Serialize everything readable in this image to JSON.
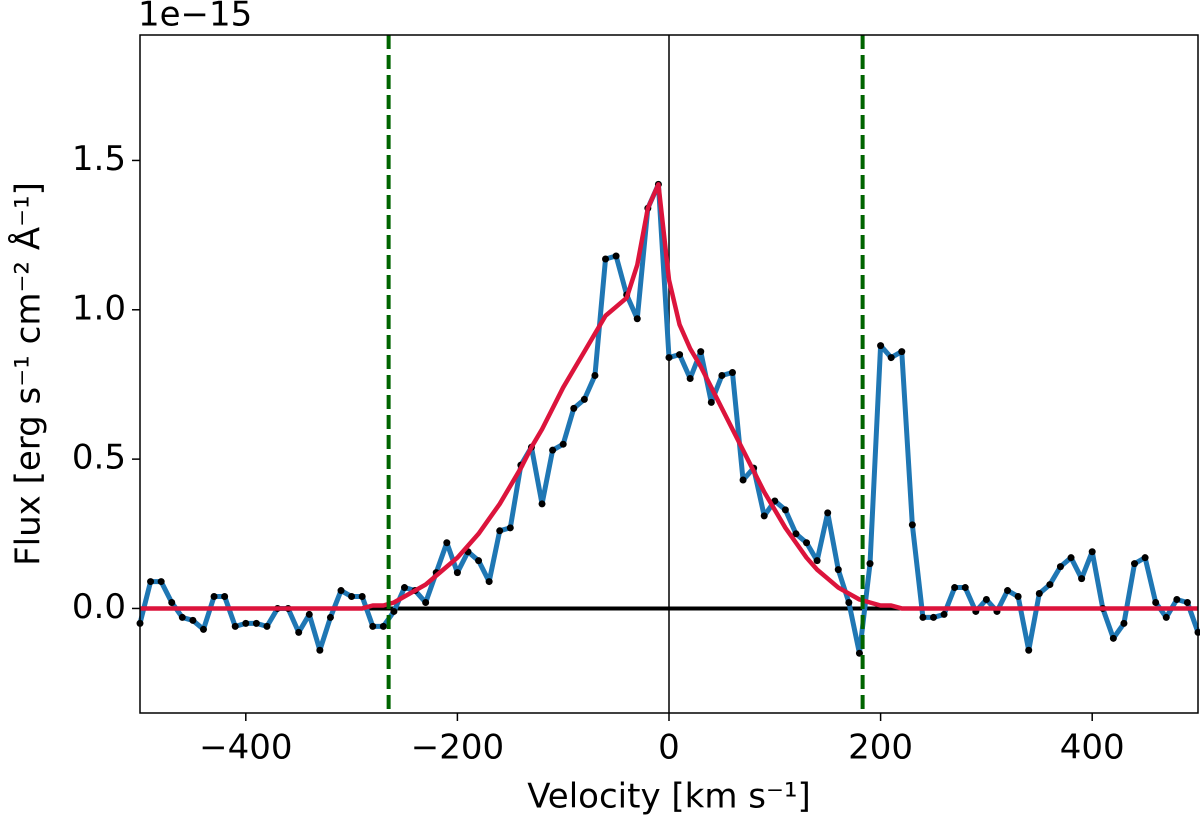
{
  "chart_data": {
    "type": "line",
    "offset_text": "1e−15",
    "x_label": "Velocity [km s⁻¹]",
    "y_label": "Flux [erg s⁻¹ cm⁻² Å⁻¹]",
    "xlim": [
      -500,
      500
    ],
    "ylim": [
      -0.35,
      1.92
    ],
    "xticks": [
      {
        "value": -400,
        "label": "−400"
      },
      {
        "value": -200,
        "label": "−200"
      },
      0,
      200,
      400
    ],
    "yticks": [
      {
        "value": 0,
        "label": "0.0"
      },
      {
        "value": 0.5,
        "label": "0.5"
      },
      {
        "value": 1,
        "label": "1.0"
      },
      {
        "value": 1.5,
        "label": "1.5"
      }
    ],
    "reference_lines": {
      "x": 0,
      "y": 0,
      "color": "#000000"
    },
    "vlines": [
      {
        "value": -265,
        "color": "#006400"
      },
      {
        "value": 183,
        "color": "#006400"
      }
    ],
    "x": [
      -500,
      -490,
      -480,
      -470,
      -460,
      -450,
      -440,
      -430,
      -420,
      -410,
      -400,
      -390,
      -380,
      -370,
      -360,
      -350,
      -340,
      -330,
      -320,
      -310,
      -300,
      -290,
      -280,
      -270,
      -260,
      -250,
      -240,
      -230,
      -220,
      -210,
      -200,
      -190,
      -180,
      -170,
      -160,
      -150,
      -140,
      -130,
      -120,
      -110,
      -100,
      -90,
      -80,
      -70,
      -60,
      -50,
      -40,
      -30,
      -20,
      -10,
      0,
      10,
      20,
      30,
      40,
      50,
      60,
      70,
      80,
      90,
      100,
      110,
      120,
      130,
      140,
      150,
      160,
      170,
      180,
      190,
      200,
      210,
      220,
      230,
      240,
      250,
      260,
      270,
      280,
      290,
      300,
      310,
      320,
      330,
      340,
      350,
      360,
      370,
      380,
      390,
      400,
      410,
      420,
      430,
      440,
      450,
      460,
      470,
      480,
      490,
      500
    ],
    "series": [
      {
        "color": "#1f77b4",
        "marker_color": "#000000",
        "values": [
          -0.05,
          0.09,
          0.09,
          0.02,
          -0.03,
          -0.04,
          -0.07,
          0.04,
          0.04,
          -0.06,
          -0.05,
          -0.05,
          -0.06,
          0.0,
          0.0,
          -0.08,
          -0.02,
          -0.14,
          -0.03,
          0.06,
          0.04,
          0.04,
          -0.06,
          -0.06,
          -0.01,
          0.07,
          0.06,
          0.02,
          0.12,
          0.22,
          0.12,
          0.19,
          0.16,
          0.09,
          0.26,
          0.27,
          0.48,
          0.54,
          0.35,
          0.53,
          0.55,
          0.67,
          0.7,
          0.78,
          1.17,
          1.18,
          1.05,
          0.97,
          1.34,
          1.42,
          0.84,
          0.85,
          0.77,
          0.86,
          0.69,
          0.78,
          0.79,
          0.43,
          0.47,
          0.31,
          0.36,
          0.33,
          0.25,
          0.22,
          0.16,
          0.32,
          0.13,
          0.02,
          -0.15,
          0.15,
          0.88,
          0.84,
          0.86,
          0.28,
          -0.03,
          -0.03,
          -0.02,
          0.07,
          0.07,
          -0.01,
          0.03,
          -0.01,
          0.06,
          0.04,
          -0.14,
          0.05,
          0.08,
          0.14,
          0.17,
          0.1,
          0.19,
          0.0,
          -0.1,
          -0.05,
          0.15,
          0.17,
          0.02,
          -0.03,
          0.03,
          0.02,
          -0.08
        ]
      },
      {
        "color": "#dc143c",
        "values": [
          0,
          0,
          0,
          0,
          0,
          0,
          0,
          0,
          0,
          0,
          0,
          0,
          0,
          0,
          0,
          0,
          0,
          0,
          0,
          0,
          0,
          0.0,
          0.01,
          0.01,
          0.02,
          0.04,
          0.06,
          0.08,
          0.11,
          0.14,
          0.17,
          0.21,
          0.25,
          0.3,
          0.35,
          0.41,
          0.47,
          0.54,
          0.6,
          0.67,
          0.74,
          0.8,
          0.86,
          0.92,
          0.98,
          1.01,
          1.04,
          1.15,
          1.34,
          1.42,
          1.1,
          0.95,
          0.87,
          0.81,
          0.74,
          0.67,
          0.6,
          0.53,
          0.46,
          0.39,
          0.33,
          0.27,
          0.22,
          0.17,
          0.13,
          0.1,
          0.07,
          0.05,
          0.03,
          0.02,
          0.01,
          0.01,
          0.0,
          0,
          0,
          0,
          0,
          0,
          0,
          0,
          0,
          0,
          0,
          0,
          0,
          0,
          0,
          0,
          0,
          0,
          0,
          0,
          0,
          0,
          0,
          0,
          0,
          0,
          0,
          0,
          0
        ]
      }
    ]
  }
}
